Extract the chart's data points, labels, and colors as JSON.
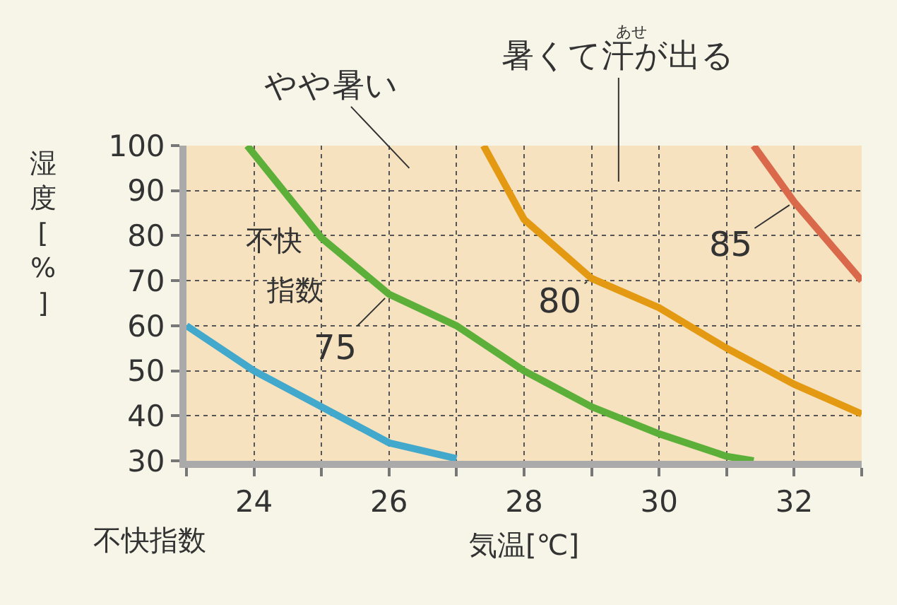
{
  "chart_data": {
    "type": "line",
    "xlabel": "気温[℃]",
    "ylabel": "湿度[%]",
    "annotations": [
      "やや暑い",
      "暑くて汗が出る",
      "あせ",
      "不快",
      "指数",
      "不快指数"
    ],
    "series": [
      {
        "color": "#42a8cc",
        "x": [
          23,
          24,
          25,
          26,
          27
        ],
        "values": [
          60,
          50,
          42,
          34,
          30.5
        ]
      },
      {
        "name": "75",
        "color": "#5cb03a",
        "x": [
          23.9,
          25,
          26,
          27,
          28,
          29,
          30,
          31,
          31.4
        ],
        "values": [
          100,
          79.5,
          67,
          60,
          50,
          42,
          36,
          31,
          30
        ]
      },
      {
        "name": "80",
        "color": "#e39a12",
        "x": [
          27.4,
          28,
          29,
          30,
          31,
          32,
          33
        ],
        "values": [
          100,
          83.6,
          70.5,
          64,
          55,
          47,
          40.4
        ]
      },
      {
        "name": "85",
        "color": "#d9694a",
        "x": [
          31.4,
          32,
          33
        ],
        "values": [
          100,
          87.5,
          70
        ]
      }
    ],
    "xlim": [
      23,
      33
    ],
    "xticks": [
      {
        "value": 23,
        "label": null
      },
      24,
      {
        "value": 25,
        "label": null
      },
      26,
      {
        "value": 27,
        "label": null
      },
      28,
      {
        "value": 29,
        "label": null
      },
      30,
      {
        "value": 31,
        "label": null
      },
      32,
      {
        "value": 33,
        "label": null
      }
    ],
    "ylim": [
      30,
      100
    ],
    "yticks": [
      30,
      40,
      50,
      60,
      70,
      80,
      90,
      100
    ],
    "grid": true,
    "legend": false,
    "marker": "none",
    "line_style": "solid"
  }
}
